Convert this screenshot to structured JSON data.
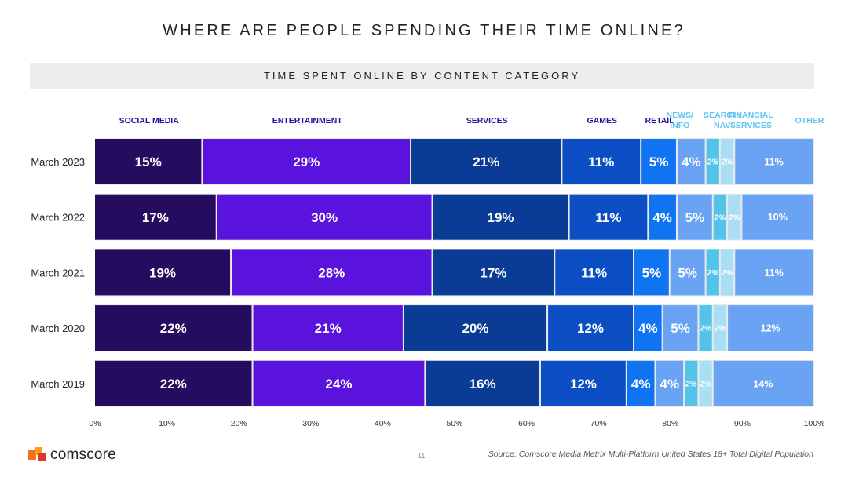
{
  "title": "WHERE ARE PEOPLE SPENDING THEIR TIME ONLINE?",
  "subtitle": "TIME SPENT ONLINE BY CONTENT CATEGORY",
  "footer": {
    "brand": "comscore",
    "page_number": "11",
    "source": "Source: Comscore Media Metrix Multi-Platform United States 18+ Total Digital Population"
  },
  "colors": {
    "social_media": "#250c5e",
    "entertainment": "#5a13dc",
    "services": "#0a3c96",
    "games": "#0c4fc4",
    "retail": "#1074f2",
    "news_info": "#6aa3f3",
    "search_nav": "#53c3ea",
    "financial_services": "#a9def4",
    "other": "#6aa3f3",
    "category_label": "#2a0f9a",
    "category_label_light": "#60c4ee"
  },
  "chart_data": {
    "type": "bar",
    "orientation": "horizontal",
    "stacked": true,
    "title": "TIME SPENT ONLINE BY CONTENT CATEGORY",
    "categories": [
      "March 2023",
      "March 2022",
      "March 2021",
      "March 2020",
      "March 2019"
    ],
    "series": [
      {
        "name": "SOCIAL MEDIA",
        "values": [
          15,
          17,
          19,
          22,
          22
        ],
        "labels": [
          "15%",
          "17%",
          "19%",
          "22%",
          "22%"
        ]
      },
      {
        "name": "ENTERTAINMENT",
        "values": [
          29,
          30,
          28,
          21,
          24
        ],
        "labels": [
          "29%",
          "30%",
          "28%",
          "21%",
          "24%"
        ]
      },
      {
        "name": "SERVICES",
        "values": [
          21,
          19,
          17,
          20,
          16
        ],
        "labels": [
          "21%",
          "19%",
          "17%",
          "20%",
          "16%"
        ]
      },
      {
        "name": "GAMES",
        "values": [
          11,
          11,
          11,
          12,
          12
        ],
        "labels": [
          "11%",
          "11%",
          "11%",
          "12%",
          "12%"
        ]
      },
      {
        "name": "RETAIL",
        "values": [
          5,
          4,
          5,
          4,
          4
        ],
        "labels": [
          "5%",
          "4%",
          "5%",
          "4%",
          "4%"
        ]
      },
      {
        "name": "NEWS/ INFO",
        "values": [
          4,
          5,
          5,
          5,
          4
        ],
        "labels": [
          "4%",
          "5%",
          "5%",
          "5%",
          "4%"
        ]
      },
      {
        "name": "SEARCH/ NAV",
        "values": [
          2,
          2,
          2,
          2,
          2
        ],
        "labels": [
          "2%",
          "2%",
          "2%",
          "2%",
          "2%"
        ]
      },
      {
        "name": "FINANCIAL SERVICES",
        "values": [
          2,
          2,
          2,
          2,
          2
        ],
        "labels": [
          "2%",
          "2%",
          "2%",
          "2%",
          "2%"
        ]
      },
      {
        "name": "OTHER",
        "values": [
          11,
          10,
          11,
          12,
          14
        ],
        "labels": [
          "11%",
          "10%",
          "11%",
          "12%",
          "14%"
        ]
      }
    ],
    "xlim": [
      0,
      100
    ],
    "xticks": [
      "0%",
      "10%",
      "20%",
      "30%",
      "40%",
      "50%",
      "60%",
      "70%",
      "80%",
      "90%",
      "100%"
    ],
    "legend": "top"
  }
}
